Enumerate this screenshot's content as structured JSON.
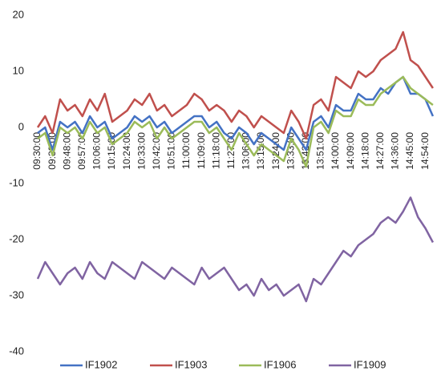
{
  "chart_data": {
    "type": "line",
    "categories": [
      "09:30:00",
      null,
      "09:39:00",
      null,
      "09:48:00",
      null,
      "09:57:00",
      null,
      "10:06:00",
      null,
      "10:15:00",
      null,
      "10:24:00",
      null,
      "10:33:00",
      null,
      "10:42:00",
      null,
      "10:51:00",
      null,
      "11:00:00",
      null,
      "11:09:00",
      null,
      "11:18:00",
      null,
      "11:27:00",
      null,
      "13:06:00",
      null,
      "13:15:00",
      null,
      "13:24:00",
      null,
      "13:33:00",
      null,
      "13:42:00",
      null,
      "13:51:00",
      null,
      "14:00:00",
      null,
      "14:09:00",
      null,
      "14:18:00",
      null,
      "14:27:00",
      null,
      "14:36:00",
      null,
      "14:45:00",
      null,
      "14:54:00",
      null
    ],
    "series": [
      {
        "name": "IF1902",
        "color": "#4472c4",
        "values": [
          -1,
          0,
          -4,
          1,
          0,
          1,
          -1,
          2,
          0,
          1,
          -2,
          -1,
          0,
          2,
          1,
          2,
          0,
          1,
          -1,
          0,
          1,
          2,
          2,
          0,
          1,
          -1,
          -2,
          0,
          -1,
          -3,
          -1,
          -2,
          -3,
          -4,
          0,
          -2,
          -4,
          1,
          2,
          0,
          4,
          3,
          3,
          6,
          5,
          5,
          7,
          6,
          8,
          9,
          6,
          6,
          5,
          2
        ]
      },
      {
        "name": "IF1903",
        "color": "#c0504d",
        "values": [
          0,
          2,
          -1,
          5,
          3,
          4,
          2,
          5,
          3,
          6,
          1,
          2,
          3,
          5,
          4,
          6,
          3,
          4,
          2,
          3,
          4,
          6,
          5,
          3,
          4,
          3,
          1,
          3,
          2,
          0,
          2,
          1,
          0,
          -1,
          3,
          1,
          -2,
          4,
          5,
          3,
          9,
          8,
          7,
          10,
          9,
          10,
          12,
          13,
          14,
          17,
          12,
          11,
          9,
          7
        ]
      },
      {
        "name": "IF1906",
        "color": "#9bbb59",
        "values": [
          -2,
          -1,
          -5,
          0,
          -1,
          0,
          -2,
          1,
          -1,
          0,
          -3,
          -2,
          -1,
          1,
          0,
          1,
          -2,
          0,
          -2,
          -1,
          0,
          1,
          1,
          -1,
          0,
          -2,
          -4,
          -1,
          -3,
          -5,
          -3,
          -4,
          -5,
          -6,
          -2,
          -4,
          -7,
          0,
          1,
          -1,
          3,
          2,
          2,
          5,
          4,
          4,
          6,
          7,
          8,
          9,
          7,
          6,
          5,
          4
        ]
      },
      {
        "name": "IF1909",
        "color": "#8064a2",
        "values": [
          -27,
          -24,
          -26,
          -28,
          -26,
          -25,
          -27,
          -24,
          -26,
          -27,
          -24,
          -25,
          -26,
          -27,
          -24,
          -25,
          -26,
          -27,
          -25,
          -26,
          -27,
          -28,
          -25,
          -27,
          -26,
          -25,
          -27,
          -29,
          -28,
          -30,
          -27,
          -29,
          -28,
          -30,
          -29,
          -28,
          -31,
          -27,
          -28,
          -26,
          -24,
          -22,
          -23,
          -21,
          -20,
          -19,
          -17,
          -16,
          -17,
          -15,
          -12.5,
          -16,
          -18,
          -20.5
        ]
      }
    ],
    "ylim": [
      -40,
      20
    ],
    "yticks": [
      -40,
      -30,
      -20,
      -10,
      0,
      10,
      20
    ],
    "grid": false,
    "legend": "bottom"
  }
}
